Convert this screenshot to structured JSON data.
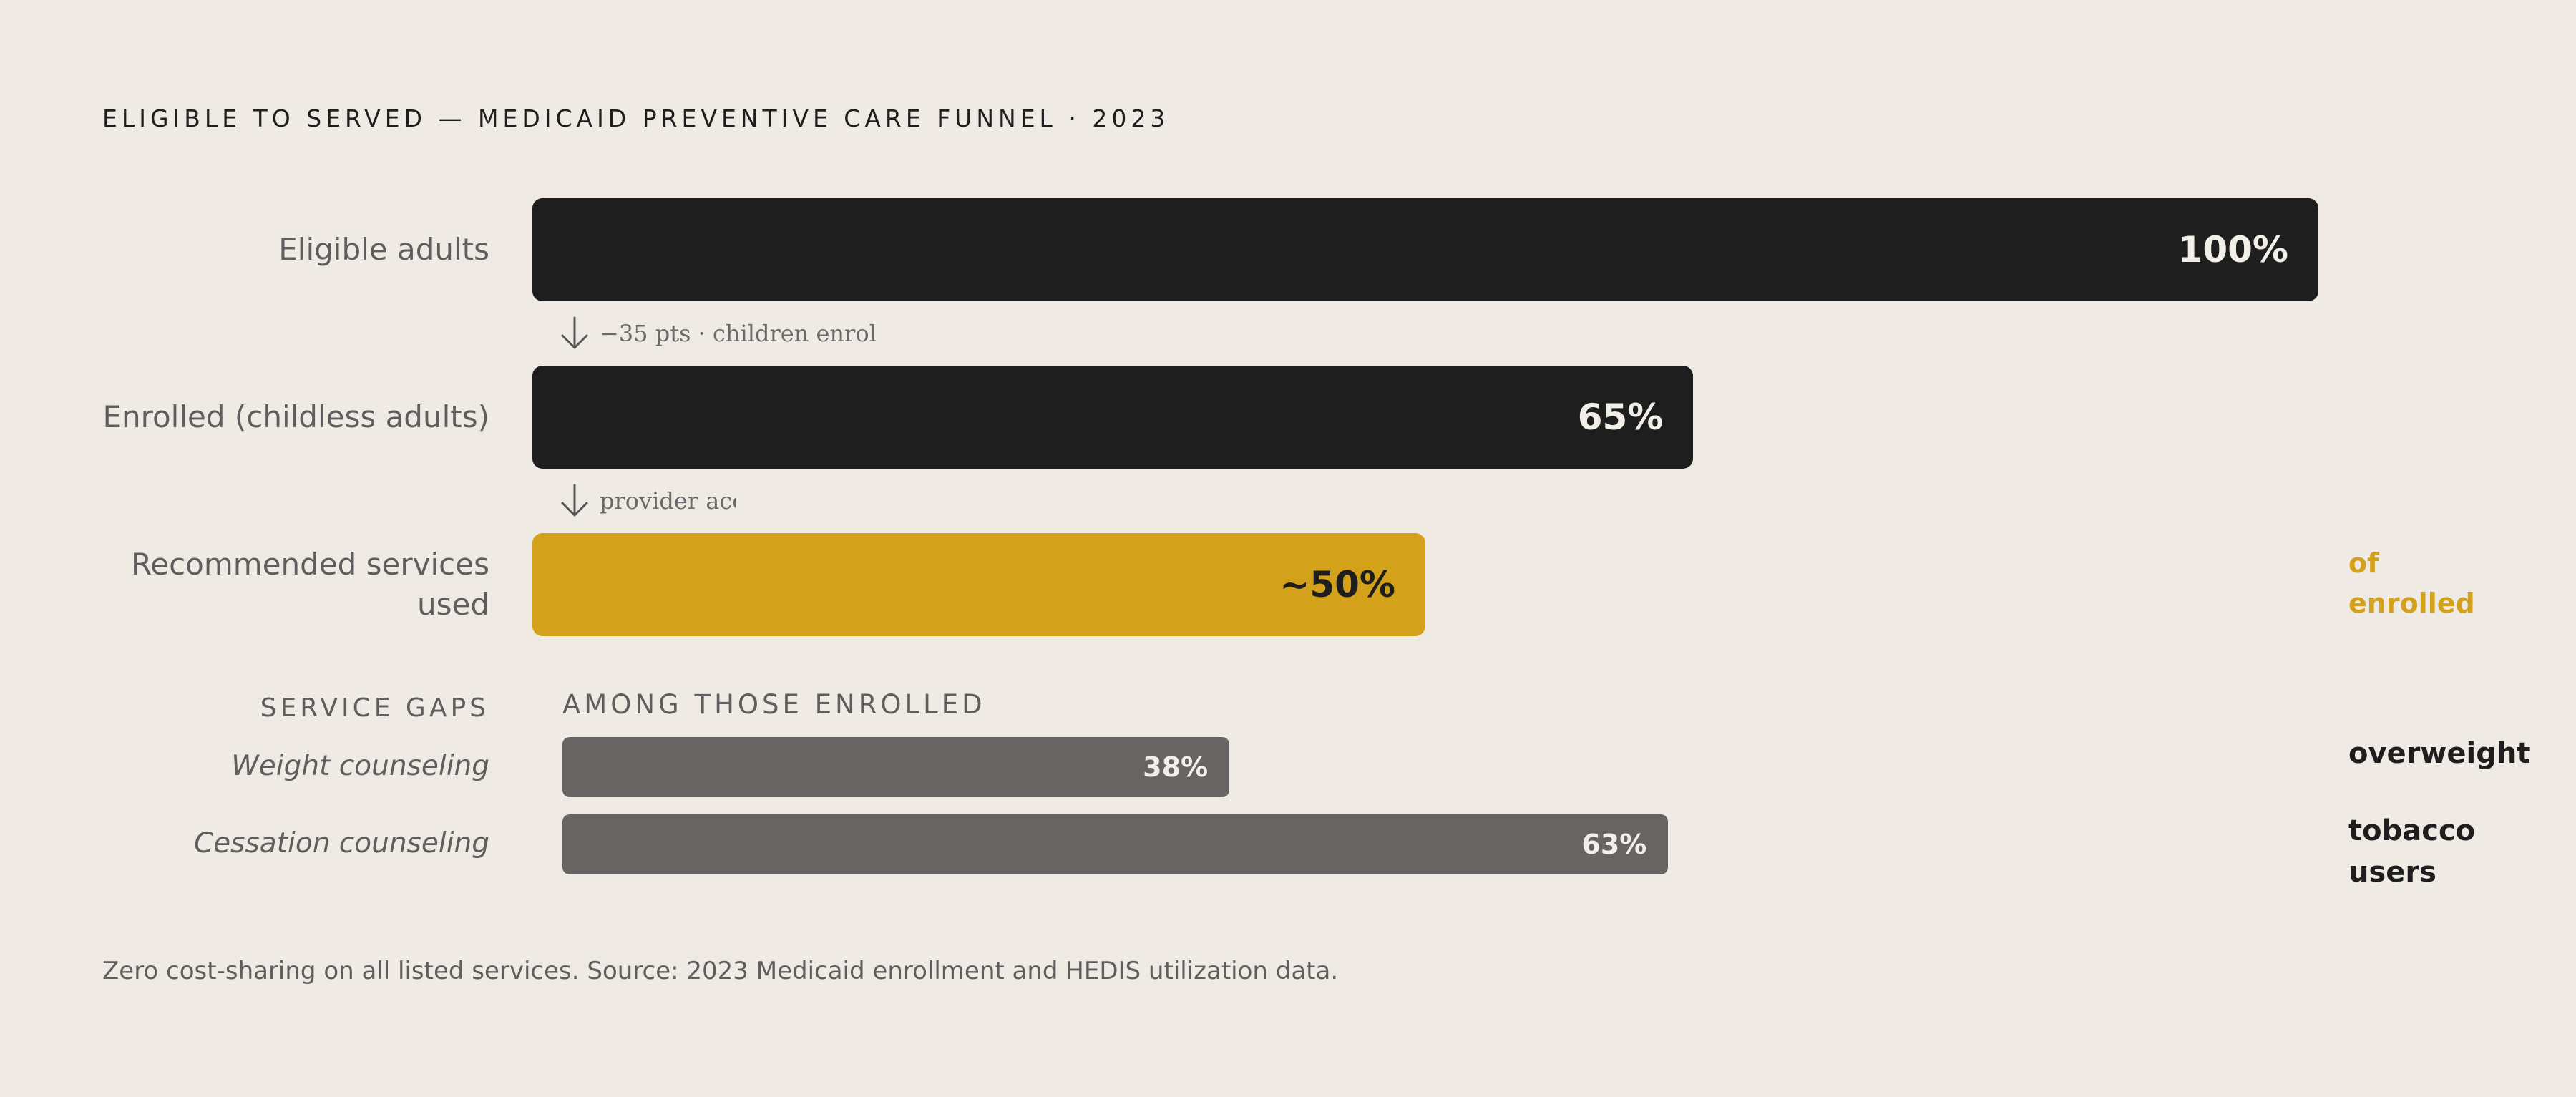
{
  "title": "ELIGIBLE TO SERVED — MEDICAID PREVENTIVE CARE FUNNEL · 2023",
  "colors": {
    "background": "#efeae3",
    "dark_bar": "#1e1e1e",
    "accent": "#d4a11b",
    "gap_bar": "#666563"
  },
  "chart_data": {
    "type": "bar",
    "title": "ELIGIBLE TO SERVED — MEDICAID PREVENTIVE CARE FUNNEL · 2023",
    "xlim": [
      0,
      100
    ],
    "funnel": [
      {
        "label": "Eligible adults",
        "value": 100,
        "value_label": "100%",
        "color": "#1e1e1e",
        "text_color": "#f2eee8",
        "annotation": ""
      },
      {
        "label": "Enrolled (childless adults)",
        "value": 65,
        "value_label": "65%",
        "color": "#1e1e1e",
        "text_color": "#f2eee8",
        "annotation": ""
      },
      {
        "label": "Recommended services used",
        "value": 50,
        "value_label": "~50%",
        "color": "#d4a11b",
        "text_color": "#1e1e1e",
        "annotation": "of enrolled",
        "annotation_color": "#d4a11b"
      }
    ],
    "drops": [
      {
        "icon": "arrow-down-icon",
        "text": "−35 pts · children enrol"
      },
      {
        "icon": "arrow-down-icon",
        "text": "provider acces"
      }
    ],
    "gaps": {
      "heading": "SERVICE GAPS",
      "subheading": "AMONG THOSE ENROLLED",
      "items": [
        {
          "label": "Weight counseling",
          "value": 38,
          "value_label": "38%",
          "annotation": "overweight"
        },
        {
          "label": "Cessation counseling",
          "value": 63,
          "value_label": "63%",
          "annotation": "tobacco users"
        }
      ]
    }
  },
  "footnote": "Zero cost-sharing on all listed services. Source: 2023 Medicaid enrollment and HEDIS utilization data."
}
